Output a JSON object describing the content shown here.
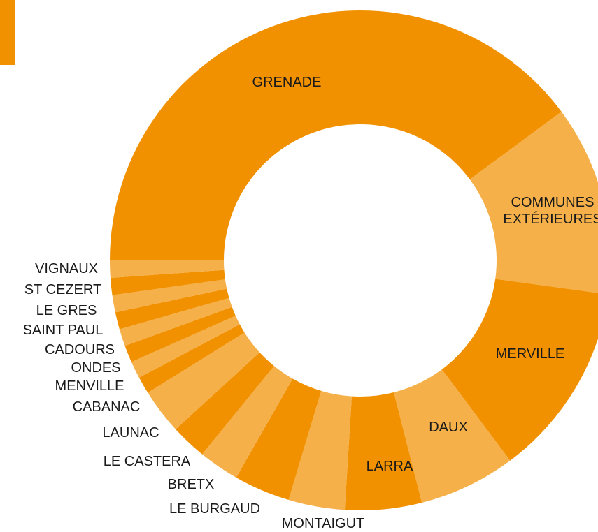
{
  "chart_data": {
    "type": "pie",
    "categories": [
      "GRENADE",
      "COMMUNES EXTÉRIEURES",
      "MERVILLE",
      "DAUX",
      "LARRA",
      "MONTAIGUT",
      "LE BURGAUD",
      "BRETX",
      "LE CASTERA",
      "LAUNAC",
      "CABANAC",
      "MENVILLE",
      "ONDES",
      "CADOURS",
      "SAINT PAUL",
      "LE GRES",
      "ST CEZERT",
      "VIGNAUX"
    ],
    "values": [
      39.5,
      12.2,
      12.5,
      6.2,
      4.9,
      3.6,
      3.6,
      2.6,
      2.3,
      2.9,
      1.1,
      1.1,
      1.1,
      1.1,
      1.1,
      1.1,
      1.1,
      1.1
    ],
    "colors": [
      "#f29100",
      "#f5b04a",
      "#f29100",
      "#f5b04a",
      "#f29100",
      "#f5b04a",
      "#f29100",
      "#f5b04a",
      "#f29100",
      "#f5b04a",
      "#f29100",
      "#f5b04a",
      "#f29100",
      "#f5b04a",
      "#f29100",
      "#f5b04a",
      "#f29100",
      "#f5b04a"
    ]
  }
}
